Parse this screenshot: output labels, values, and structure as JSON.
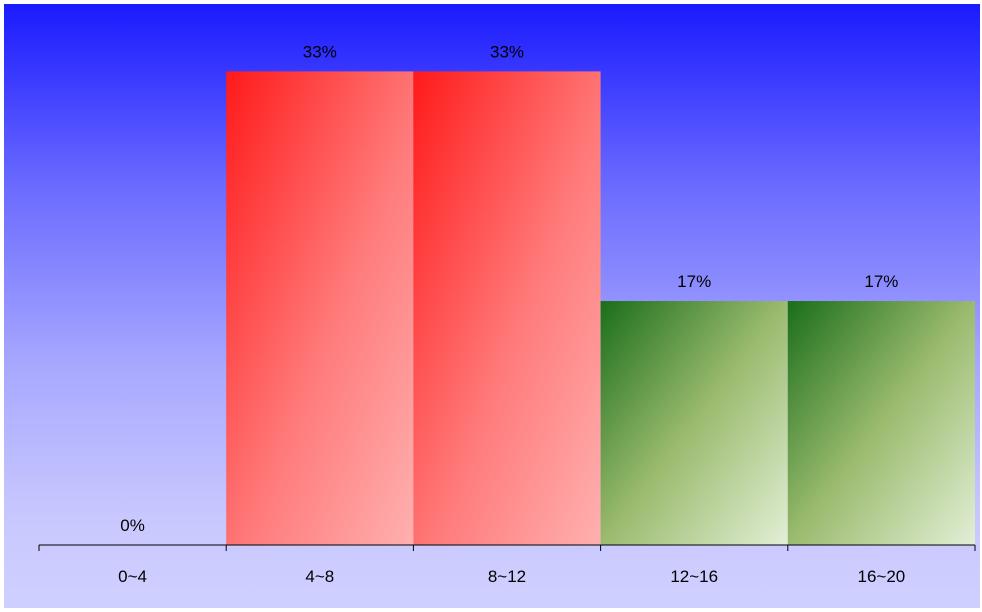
{
  "chart_data": {
    "type": "bar",
    "categories": [
      "0~4",
      "4~8",
      "8~12",
      "12~16",
      "16~20"
    ],
    "values": [
      0,
      33,
      33,
      17,
      17
    ],
    "value_labels": [
      "0%",
      "33%",
      "33%",
      "17%",
      "17%"
    ],
    "ylim": [
      0,
      37
    ],
    "grid": false,
    "legend": "none",
    "bar_styles": [
      "red",
      "red",
      "red",
      "green",
      "green"
    ]
  },
  "colors": {
    "background_top": "#1a1aff",
    "background_bottom": "#cfcfff",
    "red_dark": "#ff1a1a",
    "red_light": "#ffb0b0",
    "green_dark": "#1a6e1a",
    "green_mid": "#9bbb6e",
    "green_light": "#e2efd6",
    "axis": "#000000"
  }
}
